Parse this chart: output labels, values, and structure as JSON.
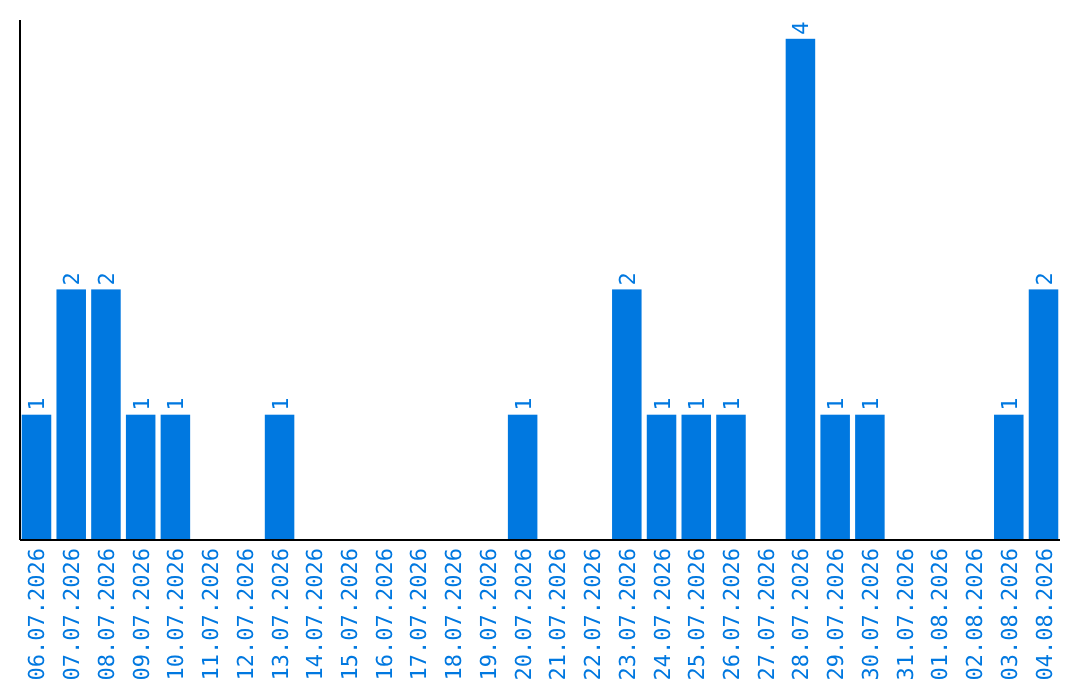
{
  "chart_data": {
    "type": "bar",
    "categories": [
      "06.07.2026",
      "07.07.2026",
      "08.07.2026",
      "09.07.2026",
      "10.07.2026",
      "11.07.2026",
      "12.07.2026",
      "13.07.2026",
      "14.07.2026",
      "15.07.2026",
      "16.07.2026",
      "17.07.2026",
      "18.07.2026",
      "19.07.2026",
      "20.07.2026",
      "21.07.2026",
      "22.07.2026",
      "23.07.2026",
      "24.07.2026",
      "25.07.2026",
      "26.07.2026",
      "27.07.2026",
      "28.07.2026",
      "29.07.2026",
      "30.07.2026",
      "31.07.2026",
      "01.08.2026",
      "02.08.2026",
      "03.08.2026",
      "04.08.2026"
    ],
    "values": [
      1,
      2,
      2,
      1,
      1,
      0,
      0,
      1,
      0,
      0,
      0,
      0,
      0,
      0,
      1,
      0,
      0,
      2,
      1,
      1,
      1,
      0,
      4,
      1,
      1,
      0,
      0,
      0,
      1,
      2
    ],
    "value_labels": [
      "1",
      "2",
      "2",
      "1",
      "1",
      null,
      null,
      "1",
      null,
      null,
      null,
      null,
      null,
      null,
      "1",
      null,
      null,
      "2",
      "1",
      "1",
      "1",
      null,
      "4",
      "1",
      "1",
      null,
      null,
      null,
      "1",
      "2"
    ],
    "color": "#0078e0",
    "ylim": [
      0,
      4.15
    ],
    "tick_labels": "x"
  }
}
